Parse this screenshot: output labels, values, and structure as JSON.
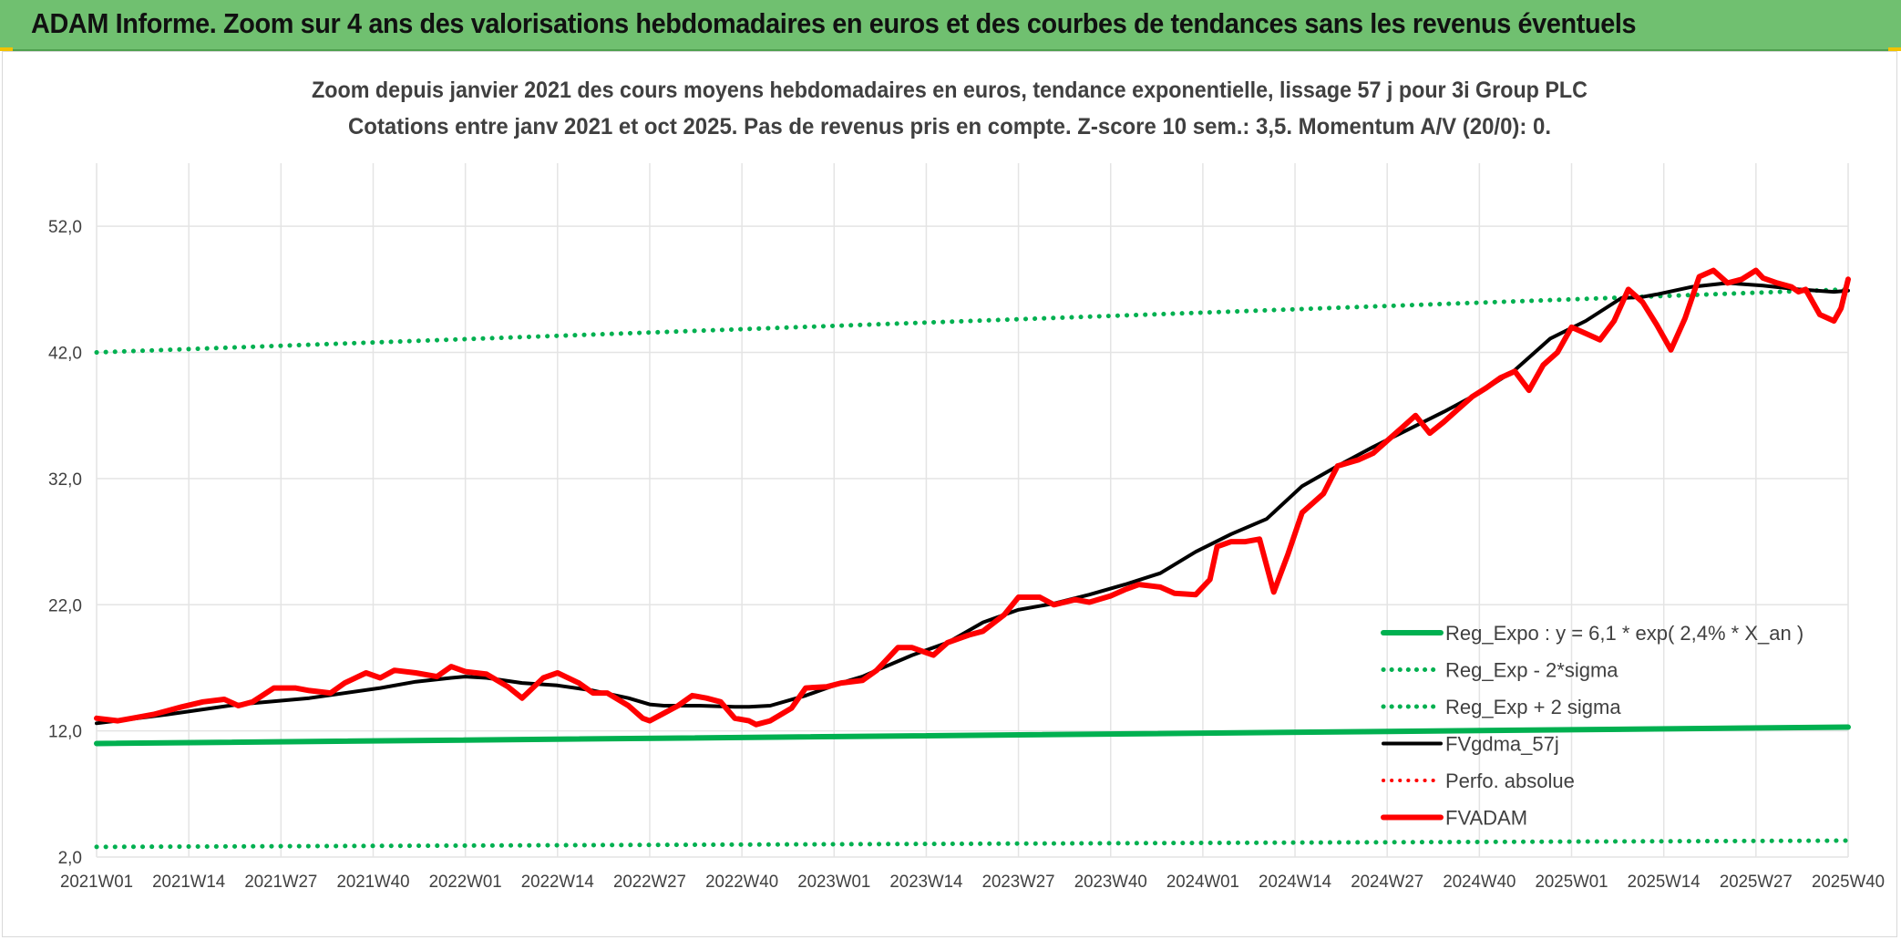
{
  "banner": {
    "title": "ADAM Informe. Zoom sur 4 ans des valorisations hebdomadaires en euros et des courbes de tendances sans les revenus éventuels",
    "color": "#70c070"
  },
  "chart_data": {
    "type": "line",
    "title": "Zoom depuis janvier 2021 des cours moyens hebdomadaires en euros, tendance exponentielle, lissage 57 j pour 3i Group PLC",
    "subtitle": "Cotations entre janv 2021 et oct 2025. Pas de revenus pris en compte. Z-score 10 sem.: 3,5. Momentum A/V (20/0): 0.",
    "xlabel": "",
    "ylabel": "",
    "x_range": [
      0,
      247
    ],
    "ylim": [
      2,
      57
    ],
    "y_ticks": [
      2,
      12,
      22,
      32,
      42,
      52
    ],
    "y_tick_labels": [
      "2,0",
      "12,0",
      "22,0",
      "32,0",
      "42,0",
      "52,0"
    ],
    "x_ticks": [
      0,
      13,
      26,
      39,
      52,
      65,
      78,
      91,
      104,
      117,
      130,
      143,
      156,
      169,
      182,
      195,
      208,
      221,
      234,
      247
    ],
    "x_tick_labels": [
      "2021W01",
      "2021W14",
      "2021W27",
      "2021W40",
      "2022W01",
      "2022W14",
      "2022W27",
      "2022W40",
      "2023W01",
      "2023W14",
      "2023W27",
      "2023W40",
      "2024W01",
      "2024W14",
      "2024W27",
      "2024W40",
      "2025W01",
      "2025W14",
      "2025W27",
      "2025W40"
    ],
    "grid": true,
    "legend_position": "bottom-right",
    "series": [
      {
        "name": "Reg_Expo : y = 6,1 * exp( 2,4% *  X_an )",
        "color": "#00b050",
        "style": "solid",
        "width": 6,
        "x": [
          0,
          247
        ],
        "values": [
          11.0,
          12.3
        ]
      },
      {
        "name": "Reg_Exp - 2*sigma",
        "color": "#00b050",
        "style": "dotted",
        "width": 5,
        "x": [
          0,
          247
        ],
        "values": [
          2.8,
          3.3
        ]
      },
      {
        "name": "Reg_Exp + 2 sigma",
        "color": "#00b050",
        "style": "dotted",
        "width": 5,
        "x": [
          0,
          247
        ],
        "values": [
          42.0,
          47.0
        ]
      },
      {
        "name": "FVgdma_57j",
        "color": "#000000",
        "style": "solid",
        "width": 4,
        "x": [
          0,
          10,
          20,
          30,
          40,
          45,
          50,
          52,
          55,
          60,
          65,
          70,
          75,
          78,
          80,
          85,
          90,
          92,
          95,
          100,
          105,
          108,
          110,
          115,
          120,
          125,
          130,
          135,
          140,
          145,
          150,
          155,
          160,
          165,
          170,
          175,
          180,
          185,
          190,
          195,
          200,
          205,
          210,
          215,
          218,
          220,
          225,
          230,
          235,
          240,
          245,
          247
        ],
        "values": [
          12.6,
          13.3,
          14.1,
          14.6,
          15.4,
          15.9,
          16.2,
          16.3,
          16.2,
          15.8,
          15.6,
          15.2,
          14.6,
          14.1,
          14.0,
          14.0,
          13.9,
          13.9,
          14.0,
          14.8,
          15.8,
          16.3,
          16.8,
          18.0,
          19.0,
          20.6,
          21.6,
          22.1,
          22.8,
          23.6,
          24.5,
          26.2,
          27.6,
          28.8,
          31.4,
          33.0,
          34.5,
          35.9,
          37.3,
          38.8,
          40.6,
          43.1,
          44.5,
          46.3,
          46.4,
          46.6,
          47.2,
          47.5,
          47.3,
          47.0,
          46.8,
          46.9
        ]
      },
      {
        "name": "Perfo. absolue",
        "color": "#ff0000",
        "style": "dotted",
        "width": 4,
        "x": [],
        "values": []
      },
      {
        "name": "FVADAM",
        "color": "#ff0000",
        "style": "solid",
        "width": 6,
        "x": [
          0,
          3,
          5,
          8,
          10,
          12,
          15,
          18,
          20,
          22,
          25,
          28,
          30,
          33,
          35,
          38,
          40,
          42,
          45,
          48,
          50,
          52,
          55,
          58,
          60,
          63,
          65,
          68,
          70,
          72,
          75,
          77,
          78,
          80,
          82,
          84,
          86,
          88,
          90,
          92,
          93,
          95,
          98,
          100,
          103,
          105,
          108,
          110,
          113,
          115,
          118,
          120,
          123,
          125,
          128,
          130,
          133,
          135,
          138,
          140,
          143,
          145,
          147,
          150,
          152,
          155,
          157,
          158,
          160,
          162,
          164,
          166,
          168,
          170,
          173,
          175,
          178,
          180,
          182,
          184,
          186,
          188,
          190,
          192,
          194,
          196,
          198,
          200,
          202,
          204,
          206,
          208,
          210,
          212,
          214,
          216,
          218,
          220,
          222,
          224,
          226,
          228,
          230,
          232,
          234,
          235,
          237,
          239,
          240,
          241,
          243,
          245,
          246,
          247
        ],
        "values": [
          13.0,
          12.8,
          13.0,
          13.3,
          13.6,
          13.9,
          14.3,
          14.5,
          14.0,
          14.3,
          15.4,
          15.4,
          15.2,
          15.0,
          15.8,
          16.6,
          16.2,
          16.8,
          16.6,
          16.3,
          17.1,
          16.7,
          16.5,
          15.5,
          14.6,
          16.2,
          16.6,
          15.8,
          15.0,
          15.0,
          14.0,
          13.0,
          12.8,
          13.4,
          14.0,
          14.8,
          14.6,
          14.3,
          13.0,
          12.8,
          12.5,
          12.8,
          13.8,
          15.4,
          15.5,
          15.8,
          16.0,
          16.8,
          18.6,
          18.6,
          18.0,
          19.0,
          19.6,
          19.9,
          21.2,
          22.6,
          22.6,
          22.0,
          22.4,
          22.2,
          22.7,
          23.2,
          23.6,
          23.4,
          22.9,
          22.8,
          24.0,
          26.6,
          27.0,
          27.0,
          27.2,
          23.0,
          26.0,
          29.3,
          30.8,
          33.0,
          33.5,
          34.0,
          35.0,
          36.0,
          37.0,
          35.6,
          36.5,
          37.5,
          38.5,
          39.2,
          40.0,
          40.5,
          39.0,
          41.0,
          42.0,
          44.0,
          43.5,
          43.0,
          44.5,
          47.0,
          46.0,
          44.2,
          42.2,
          44.7,
          48.0,
          48.5,
          47.5,
          47.8,
          48.5,
          47.9,
          47.5,
          47.2,
          46.8,
          47.0,
          45.0,
          44.5,
          45.5,
          47.8
        ]
      }
    ]
  }
}
